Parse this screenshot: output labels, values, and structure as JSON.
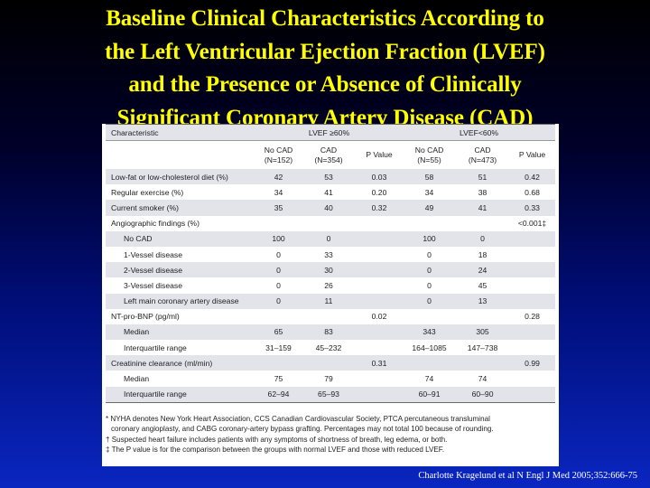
{
  "title": {
    "line1": "Baseline Clinical Characteristics According to",
    "line2": "the Left Ventricular Ejection Fraction (LVEF)",
    "line3": "and the Presence or Absence of Clinically",
    "line4": "Significant Coronary Artery Disease (CAD)"
  },
  "table": {
    "col_characteristic": "Characteristic",
    "group1": "LVEF ≥60%",
    "group2": "LVEF<60%",
    "subheaders": [
      [
        "No CAD",
        "(N=152)"
      ],
      [
        "CAD",
        "(N=354)"
      ],
      [
        "P Value",
        ""
      ],
      [
        "No CAD",
        "(N=55)"
      ],
      [
        "CAD",
        "(N=473)"
      ],
      [
        "P Value",
        ""
      ]
    ],
    "rows": [
      [
        "Low-fat or low-cholesterol diet (%)",
        "42",
        "53",
        "0.03",
        "58",
        "51",
        "0.42"
      ],
      [
        "Regular exercise (%)",
        "34",
        "41",
        "0.20",
        "34",
        "38",
        "0.68"
      ],
      [
        "Current smoker (%)",
        "35",
        "40",
        "0.32",
        "49",
        "41",
        "0.33"
      ],
      [
        "Angiographic findings (%)",
        "",
        "",
        "",
        "",
        "",
        "<0.001‡"
      ],
      [
        "No CAD",
        "100",
        "0",
        "",
        "100",
        "0",
        ""
      ],
      [
        "1-Vessel disease",
        "0",
        "33",
        "",
        "0",
        "18",
        ""
      ],
      [
        "2-Vessel disease",
        "0",
        "30",
        "",
        "0",
        "24",
        ""
      ],
      [
        "3-Vessel disease",
        "0",
        "26",
        "",
        "0",
        "45",
        ""
      ],
      [
        "Left main coronary artery disease",
        "0",
        "11",
        "",
        "0",
        "13",
        ""
      ],
      [
        "NT-pro-BNP (pg/ml)",
        "",
        "",
        "0.02",
        "",
        "",
        "0.28"
      ],
      [
        "Median",
        "65",
        "83",
        "",
        "343",
        "305",
        ""
      ],
      [
        "Interquartile range",
        "31–159",
        "45–232",
        "",
        "164–1085",
        "147–738",
        ""
      ],
      [
        "Creatinine clearance (ml/min)",
        "",
        "",
        "0.31",
        "",
        "",
        "0.99"
      ],
      [
        "Median",
        "75",
        "79",
        "",
        "74",
        "74",
        ""
      ],
      [
        "Interquartile range",
        "62–94",
        "65–93",
        "",
        "60–91",
        "60–90",
        ""
      ]
    ]
  },
  "footnotes": {
    "line1": "* NYHA denotes New York Heart Association, CCS Canadian Cardiovascular Society, PTCA percutaneous transluminal",
    "line2": "  coronary angioplasty, and CABG coronary-artery bypass grafting. Percentages may not total 100 because of rounding.",
    "line3": "† Suspected heart failure includes patients with any symptoms of shortness of breath, leg edema, or both.",
    "line4": "‡ The P value is for the comparison between the groups with normal LVEF and those with reduced LVEF."
  },
  "citation": "Charlotte Kragelund et al N Engl J Med 2005;352:666-75"
}
